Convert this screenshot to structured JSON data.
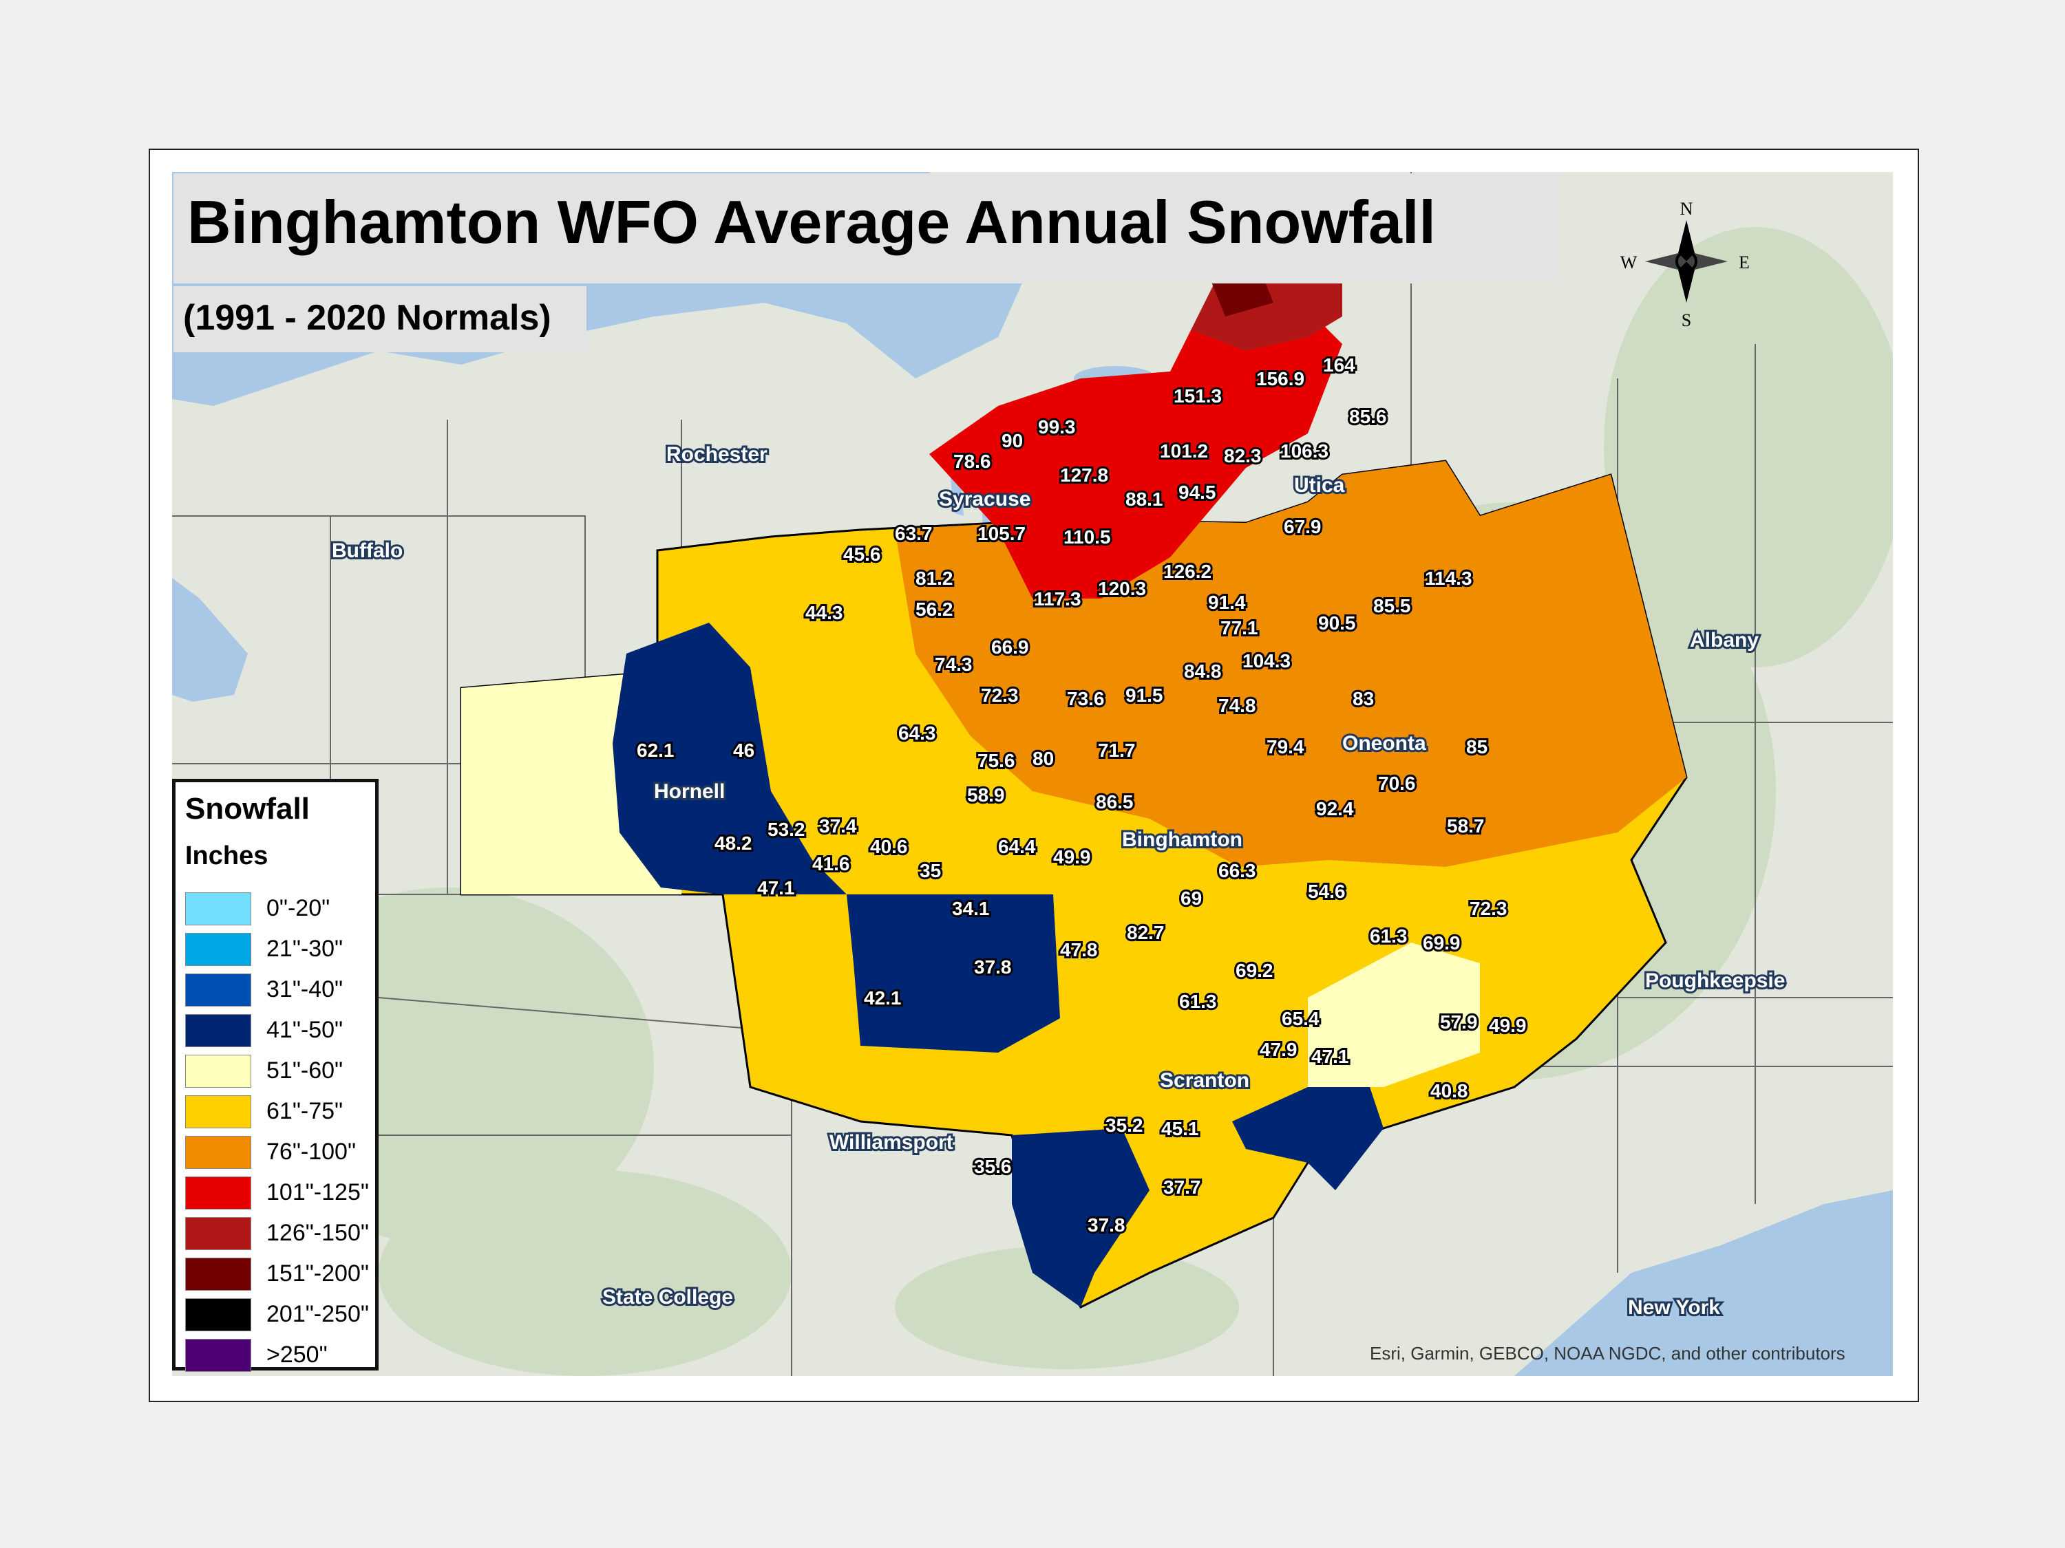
{
  "title": "Binghamton WFO Average Annual Snowfall",
  "subtitle": "(1991 - 2020 Normals)",
  "compass": {
    "n": "N",
    "s": "S",
    "e": "E",
    "w": "W"
  },
  "legend": {
    "title": "Snowfall",
    "units": "Inches",
    "items": [
      {
        "label": "0\"-20\"",
        "color": "#73dfff"
      },
      {
        "label": "21\"-30\"",
        "color": "#00a9e6"
      },
      {
        "label": "31\"-40\"",
        "color": "#0050b4"
      },
      {
        "label": "41\"-50\"",
        "color": "#002673"
      },
      {
        "label": "51\"-60\"",
        "color": "#ffffbe"
      },
      {
        "label": "61\"-75\"",
        "color": "#ffd000"
      },
      {
        "label": "76\"-100\"",
        "color": "#f08c00"
      },
      {
        "label": "101\"-125\"",
        "color": "#e60000"
      },
      {
        "label": "126\"-150\"",
        "color": "#b01818"
      },
      {
        "label": "151\"-200\"",
        "color": "#730000"
      },
      {
        "label": "201\"-250\"",
        "color": "#000000"
      },
      {
        "label": ">250\"",
        "color": "#4c0073"
      }
    ]
  },
  "cities": [
    "Rochester",
    "Buffalo",
    "Syracuse",
    "Utica",
    "Albany",
    "Oneonta",
    "Hornell",
    "Binghamton",
    "Poughkeepsie",
    "Scranton",
    "Williamsport",
    "State College",
    "New York"
  ],
  "snowfall_values": [
    "151.3",
    "156.9",
    "164",
    "85.6",
    "99.3",
    "90",
    "78.6",
    "101.2",
    "82.3",
    "106.3",
    "127.8",
    "88.1",
    "94.5",
    "67.9",
    "63.7",
    "45.6",
    "105.7",
    "110.5",
    "126.2",
    "81.2",
    "120.3",
    "117.3",
    "114.3",
    "56.2",
    "44.3",
    "91.4",
    "85.5",
    "90.5",
    "77.1",
    "66.9",
    "74.3",
    "104.3",
    "84.8",
    "72.3",
    "73.6",
    "91.5",
    "74.8",
    "83",
    "64.3",
    "62.1",
    "46",
    "79.4",
    "85",
    "71.7",
    "75.6",
    "80",
    "70.6",
    "58.9",
    "86.5",
    "92.4",
    "53.2",
    "37.4",
    "48.2",
    "58.7",
    "40.6",
    "64.4",
    "49.9",
    "41.6",
    "35",
    "66.3",
    "47.1",
    "34.1",
    "69",
    "54.6",
    "72.3",
    "82.7",
    "61.3",
    "69.9",
    "47.8",
    "37.8",
    "69.2",
    "42.1",
    "61.3",
    "65.4",
    "57.9",
    "49.9",
    "47.9",
    "47.1",
    "40.8",
    "35.2",
    "45.1",
    "35.6",
    "37.7",
    "37.8"
  ],
  "attribution": "Esri, Garmin, GEBCO, NOAA NGDC, and other contributors"
}
